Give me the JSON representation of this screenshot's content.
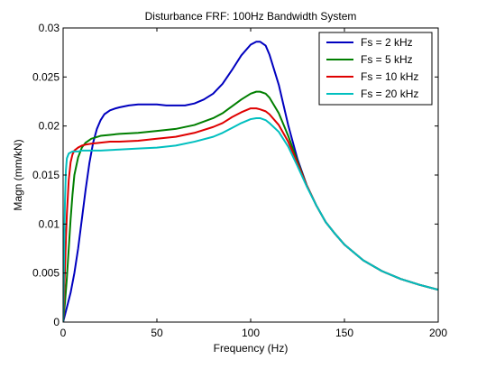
{
  "chart_data": {
    "type": "line",
    "title": "Disturbance FRF: 100Hz Bandwidth System",
    "xlabel": "Frequency (Hz)",
    "ylabel": "Magn (mm/kN)",
    "xlim": [
      0,
      200
    ],
    "ylim": [
      0,
      0.03
    ],
    "x_ticks": [
      "0",
      "50",
      "100",
      "150",
      "200"
    ],
    "y_ticks": [
      "0",
      "0.005",
      "0.01",
      "0.015",
      "0.02",
      "0.025",
      "0.03"
    ],
    "grid": false,
    "legend_position": "top-right",
    "series": [
      {
        "name": "Fs = 2 kHz",
        "color": "#0000bf",
        "x": [
          0,
          2,
          4,
          6,
          8,
          10,
          12,
          14,
          16,
          18,
          20,
          22,
          25,
          28,
          30,
          35,
          40,
          45,
          50,
          55,
          60,
          65,
          70,
          75,
          80,
          85,
          90,
          95,
          100,
          103,
          105,
          108,
          110,
          115,
          120,
          125,
          130,
          135,
          140,
          145,
          150,
          160,
          170,
          180,
          190,
          200
        ],
        "y": [
          0,
          0.0015,
          0.003,
          0.005,
          0.0075,
          0.0105,
          0.0135,
          0.0162,
          0.0183,
          0.0197,
          0.0206,
          0.0212,
          0.0216,
          0.0218,
          0.0219,
          0.0221,
          0.0222,
          0.0222,
          0.0222,
          0.0221,
          0.0221,
          0.0221,
          0.0223,
          0.0227,
          0.0233,
          0.0243,
          0.0257,
          0.0272,
          0.0283,
          0.0286,
          0.0286,
          0.0282,
          0.0273,
          0.0242,
          0.0201,
          0.0166,
          0.0139,
          0.0119,
          0.0102,
          0.009,
          0.0079,
          0.0063,
          0.0052,
          0.0044,
          0.0038,
          0.0033
        ]
      },
      {
        "name": "Fs = 5 kHz",
        "color": "#007f00",
        "x": [
          0,
          1,
          2,
          3,
          4,
          5,
          6,
          8,
          10,
          12,
          15,
          20,
          25,
          30,
          40,
          50,
          60,
          70,
          80,
          85,
          90,
          95,
          100,
          103,
          105,
          108,
          110,
          115,
          120,
          125,
          130,
          135,
          140,
          145,
          150,
          160,
          170,
          180,
          190,
          200
        ],
        "y": [
          0,
          0.002,
          0.0045,
          0.0075,
          0.0105,
          0.013,
          0.015,
          0.0168,
          0.0178,
          0.0183,
          0.0187,
          0.019,
          0.0191,
          0.0192,
          0.0193,
          0.0195,
          0.0197,
          0.0201,
          0.0208,
          0.0213,
          0.022,
          0.0227,
          0.0233,
          0.0235,
          0.0235,
          0.0233,
          0.0229,
          0.0213,
          0.019,
          0.0164,
          0.0139,
          0.0119,
          0.0102,
          0.009,
          0.0079,
          0.0063,
          0.0052,
          0.0044,
          0.0038,
          0.0033
        ]
      },
      {
        "name": "Fs = 10 kHz",
        "color": "#df0000",
        "x": [
          0,
          0.5,
          1,
          1.5,
          2,
          3,
          4,
          5,
          6,
          8,
          10,
          12,
          15,
          20,
          25,
          30,
          40,
          50,
          60,
          70,
          80,
          85,
          90,
          95,
          100,
          103,
          105,
          108,
          110,
          115,
          120,
          125,
          130,
          135,
          140,
          145,
          150,
          160,
          170,
          180,
          190,
          200
        ],
        "y": [
          0,
          0.0025,
          0.0055,
          0.0085,
          0.011,
          0.0145,
          0.0163,
          0.0171,
          0.0175,
          0.0178,
          0.018,
          0.0181,
          0.0182,
          0.0183,
          0.0184,
          0.0184,
          0.0185,
          0.0187,
          0.0189,
          0.0193,
          0.0199,
          0.0203,
          0.0209,
          0.0214,
          0.0218,
          0.0218,
          0.0217,
          0.0215,
          0.0212,
          0.0201,
          0.0184,
          0.0162,
          0.0139,
          0.0119,
          0.0102,
          0.009,
          0.0079,
          0.0063,
          0.0052,
          0.0044,
          0.0038,
          0.0033
        ]
      },
      {
        "name": "Fs = 20 kHz",
        "color": "#00bfbf",
        "x": [
          0,
          0.3,
          0.6,
          1,
          1.5,
          2,
          3,
          4,
          5,
          6,
          8,
          10,
          15,
          20,
          30,
          40,
          50,
          60,
          70,
          80,
          85,
          90,
          95,
          100,
          103,
          105,
          108,
          110,
          115,
          120,
          125,
          130,
          135,
          140,
          145,
          150,
          160,
          170,
          180,
          190,
          200
        ],
        "y": [
          0,
          0.004,
          0.008,
          0.0125,
          0.0155,
          0.0167,
          0.0172,
          0.0173,
          0.0174,
          0.0174,
          0.0174,
          0.0175,
          0.0175,
          0.0175,
          0.0176,
          0.0177,
          0.0178,
          0.018,
          0.0184,
          0.0189,
          0.0193,
          0.0198,
          0.0203,
          0.0207,
          0.0208,
          0.0208,
          0.0206,
          0.0203,
          0.0194,
          0.0179,
          0.0159,
          0.0138,
          0.0119,
          0.0102,
          0.009,
          0.0079,
          0.0063,
          0.0052,
          0.0044,
          0.0038,
          0.0033
        ]
      }
    ]
  }
}
